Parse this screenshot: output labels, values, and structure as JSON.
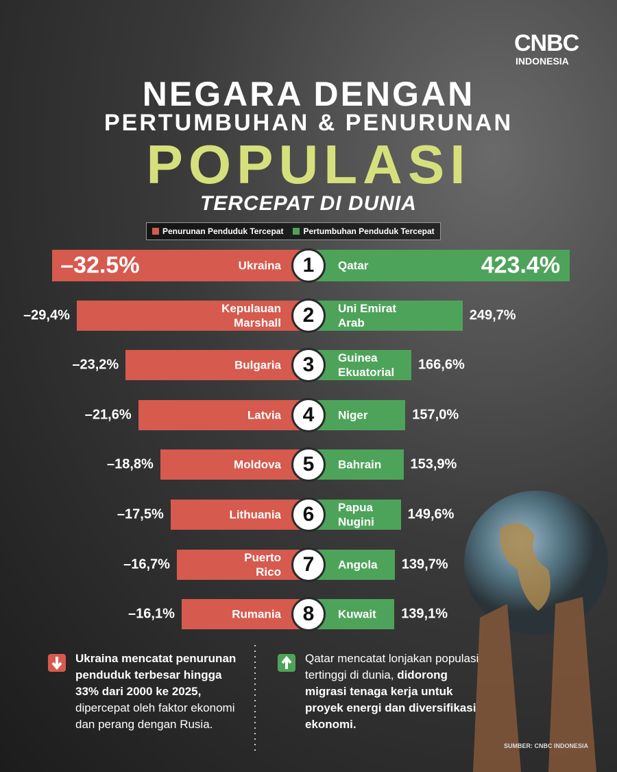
{
  "chart_data": {
    "type": "butterfly",
    "logo": {
      "brand": "CNBC",
      "sub": "INDONESIA"
    },
    "title_lines": [
      "NEGARA DENGAN",
      "PERTUMBUHAN & PENURUNAN"
    ],
    "title": "POPULASI",
    "subtitle": "TERCEPAT DI DUNIA",
    "ranks": [
      1,
      2,
      3,
      4,
      5,
      6,
      7,
      8
    ],
    "series": [
      {
        "name": "Penurunan Penduduk Tercepat",
        "color": "#d65a4e",
        "xlim": [
          -33,
          0
        ],
        "names": [
          "Ukraina",
          "Kepulauan\nMarshall",
          "Bulgaria",
          "Latvia",
          "Moldova",
          "Lithuania",
          "Puerto\nRico",
          "Rumania"
        ],
        "values": [
          -32.5,
          -29.4,
          -23.2,
          -21.6,
          -18.8,
          -17.5,
          -16.7,
          -16.1
        ],
        "value_labels": [
          "–32.5%",
          "–29,4%",
          "–23,2%",
          "–21,6%",
          "–18,8%",
          "–17,5%",
          "–16,7%",
          "–16,1%"
        ]
      },
      {
        "name": "Pertumbuhan Penduduk Tercepat",
        "color": "#4ea35a",
        "xlim": [
          0,
          430
        ],
        "names": [
          "Qatar",
          "Uni Emirat\nArab",
          "Guinea\nEkuatorial",
          "Niger",
          "Bahrain",
          "Papua\nNugini",
          "Angola",
          "Kuwait"
        ],
        "values": [
          423.4,
          249.7,
          166.6,
          157.0,
          153.9,
          149.6,
          139.7,
          139.1
        ],
        "value_labels": [
          "423.4%",
          "249,7%",
          "166,6%",
          "157,0%",
          "153,9%",
          "149,6%",
          "139,7%",
          "139,1%"
        ]
      }
    ],
    "notes": [
      {
        "color": "#d65a4e",
        "parts": [
          {
            "text": "Ukraina mencatat penurunan penduduk terbesar hingga 33% dari 2000 ke 2025, ",
            "bold": true
          },
          {
            "text": "dipercepat oleh faktor ekonomi dan perang dengan Rusia.",
            "bold": false
          }
        ]
      },
      {
        "color": "#4ea35a",
        "parts": [
          {
            "text": "Qatar mencatat lonjakan populasi tertinggi di dunia, ",
            "bold": false
          },
          {
            "text": "didorong migrasi tenaga kerja untuk proyek energi dan diversifikasi ekonomi.",
            "bold": true
          }
        ]
      }
    ],
    "source": "SUMBER: CNBC INDONESIA"
  }
}
